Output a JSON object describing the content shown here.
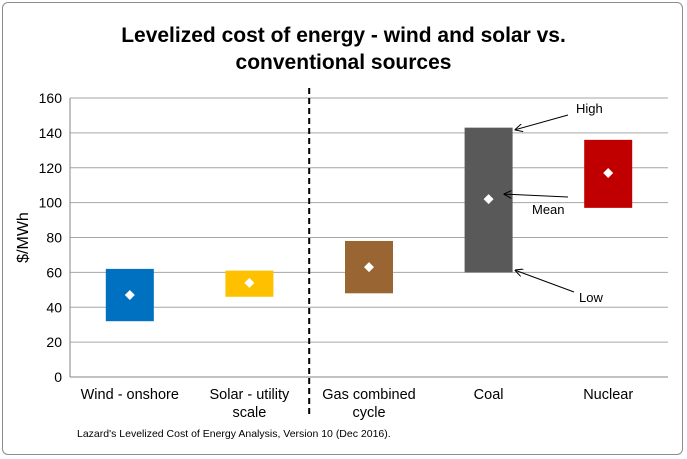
{
  "chart_data": {
    "type": "floating-bar",
    "title": "Levelized cost of energy - wind and solar vs. conventional sources",
    "xlabel": "",
    "ylabel": "$/MWh",
    "ylim": [
      0,
      160
    ],
    "yticks": [
      0,
      20,
      40,
      60,
      80,
      100,
      120,
      140,
      160
    ],
    "grid": true,
    "categories": [
      {
        "lines": [
          "Wind - onshore"
        ],
        "low": 32,
        "high": 62,
        "mean": 47,
        "color": "#0070c0"
      },
      {
        "lines": [
          "Solar - utility",
          "scale"
        ],
        "low": 46,
        "high": 61,
        "mean": 54,
        "color": "#ffc000"
      },
      {
        "lines": [
          "Gas combined",
          "cycle"
        ],
        "low": 48,
        "high": 78,
        "mean": 63,
        "color": "#996633"
      },
      {
        "lines": [
          "Coal"
        ],
        "low": 60,
        "high": 143,
        "mean": 102,
        "color": "#595959"
      },
      {
        "lines": [
          "Nuclear"
        ],
        "low": 97,
        "high": 136,
        "mean": 117,
        "color": "#c00000"
      }
    ],
    "divider_after_category": 2,
    "annotations": [
      {
        "label": "High",
        "target": "Coal high"
      },
      {
        "label": "Mean",
        "target": "Coal mean"
      },
      {
        "label": "Low",
        "target": "Coal low"
      }
    ],
    "source": "Lazard's Levelized Cost of Energy Analysis, Version 10 (Dec 2016)."
  }
}
